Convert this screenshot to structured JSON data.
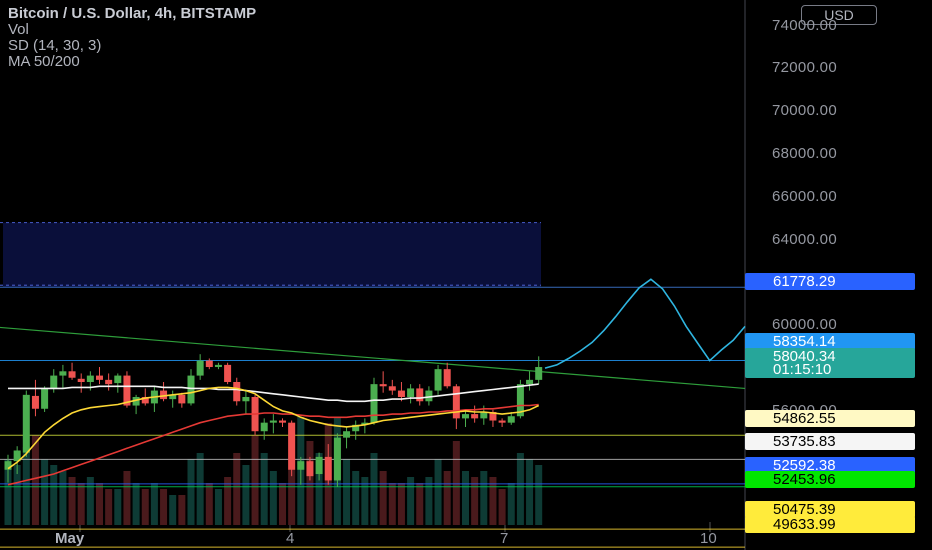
{
  "legend": {
    "title": "Bitcoin / U.S. Dollar, 4h, BITSTAMP",
    "lines": [
      "Vol",
      "SD (14, 30, 3)",
      "MA 50/200"
    ]
  },
  "currency_button": "USD",
  "axis": {
    "y_labels": [
      "74000.00",
      "72000.00",
      "70000.00",
      "68000.00",
      "66000.00",
      "64000.00",
      "60000.00",
      "56000.00"
    ],
    "x_labels": [
      "May",
      "4",
      "7",
      "10"
    ]
  },
  "price_tags": [
    {
      "label": "61778.29",
      "bg": "#2962ff",
      "fg": "#ffffff"
    },
    {
      "label": "58354.14",
      "bg": "#2196f3",
      "fg": "#ffffff"
    },
    {
      "label": "58040.34",
      "bg": "#26a69a",
      "fg": "#ffffff"
    },
    {
      "label": "01:15:10",
      "bg": "#26a69a",
      "fg": "#ffffff"
    },
    {
      "label": "54862.55",
      "bg": "#fff9c4",
      "fg": "#000000"
    },
    {
      "label": "53735.83",
      "bg": "#f5f5f5",
      "fg": "#000000"
    },
    {
      "label": "52592.38",
      "bg": "#2962ff",
      "fg": "#ffffff"
    },
    {
      "label": "52453.96",
      "bg": "#00e600",
      "fg": "#000000"
    },
    {
      "label": "50475.39",
      "bg": "#ffeb3b",
      "fg": "#000000"
    },
    {
      "label": "49633.99",
      "bg": "#ffeb3b",
      "fg": "#000000"
    }
  ],
  "colors": {
    "up": "#26a69a",
    "down": "#ef5350",
    "up_bright": "#4caf50"
  },
  "chart_data": {
    "type": "candlestick",
    "symbol": "BTCUSD",
    "interval": "4h",
    "ylim": [
      49500,
      75200
    ],
    "candles": [
      [
        53250,
        53950,
        52650,
        53650
      ],
      [
        53650,
        54350,
        53050,
        54150
      ],
      [
        54050,
        56950,
        53850,
        56750
      ],
      [
        56700,
        57450,
        55750,
        56100
      ],
      [
        56100,
        57150,
        55950,
        57050
      ],
      [
        57050,
        57950,
        56850,
        57650
      ],
      [
        57650,
        58150,
        57050,
        57850
      ],
      [
        57850,
        58250,
        57450,
        57550
      ],
      [
        57500,
        57750,
        56850,
        57350
      ],
      [
        57350,
        57850,
        56950,
        57650
      ],
      [
        57650,
        58050,
        57250,
        57450
      ],
      [
        57450,
        57750,
        56950,
        57250
      ],
      [
        57300,
        57750,
        56850,
        57650
      ],
      [
        57650,
        57850,
        56150,
        56250
      ],
      [
        56250,
        56750,
        55850,
        56650
      ],
      [
        56650,
        57050,
        56250,
        56350
      ],
      [
        56350,
        57150,
        55950,
        56950
      ],
      [
        56950,
        57350,
        56450,
        56550
      ],
      [
        56550,
        56950,
        56150,
        56750
      ],
      [
        56750,
        56850,
        56150,
        56350
      ],
      [
        56350,
        57950,
        56250,
        57650
      ],
      [
        57650,
        58650,
        57450,
        58350
      ],
      [
        58350,
        58450,
        57950,
        58050
      ],
      [
        58050,
        58250,
        57950,
        58150
      ],
      [
        58150,
        58250,
        57250,
        57350
      ],
      [
        57350,
        57550,
        56250,
        56450
      ],
      [
        56450,
        56950,
        55850,
        56650
      ],
      [
        56650,
        56750,
        54850,
        55050
      ],
      [
        55050,
        55650,
        54650,
        55450
      ],
      [
        55450,
        55850,
        54950,
        55550
      ],
      [
        55550,
        55650,
        55250,
        55450
      ],
      [
        55450,
        55550,
        52950,
        53250
      ],
      [
        53250,
        53850,
        52550,
        53650
      ],
      [
        53650,
        53850,
        52750,
        52950
      ],
      [
        53050,
        54050,
        52750,
        53850
      ],
      [
        53850,
        54450,
        52550,
        52750
      ],
      [
        52750,
        54950,
        52450,
        54750
      ],
      [
        54750,
        55250,
        54250,
        55050
      ],
      [
        55050,
        55550,
        54650,
        55350
      ],
      [
        55350,
        55650,
        54950,
        55450
      ],
      [
        55450,
        57550,
        55350,
        57250
      ],
      [
        57250,
        57850,
        56850,
        57150
      ],
      [
        57150,
        57450,
        56750,
        56950
      ],
      [
        56950,
        57350,
        56450,
        56650
      ],
      [
        56650,
        57250,
        56350,
        57050
      ],
      [
        57050,
        57250,
        56250,
        56450
      ],
      [
        56450,
        57150,
        56250,
        56950
      ],
      [
        56950,
        58150,
        56750,
        57950
      ],
      [
        57950,
        58250,
        57050,
        57150
      ],
      [
        57150,
        57250,
        55150,
        55650
      ],
      [
        55650,
        56050,
        55250,
        55850
      ],
      [
        55850,
        56250,
        55450,
        55650
      ],
      [
        55650,
        56250,
        55350,
        55950
      ],
      [
        55950,
        56050,
        55250,
        55550
      ],
      [
        55550,
        55650,
        55250,
        55450
      ],
      [
        55450,
        55950,
        55350,
        55750
      ],
      [
        55750,
        57450,
        55650,
        57250
      ],
      [
        57250,
        57850,
        56950,
        57450
      ],
      [
        57450,
        58550,
        57250,
        58050
      ]
    ],
    "ma_yellow": [
      53300,
      53600,
      54000,
      54500,
      55000,
      55350,
      55650,
      55900,
      56050,
      56150,
      56200,
      56250,
      56300,
      56400,
      56500,
      56600,
      56650,
      56700,
      56750,
      56800,
      56850,
      56950,
      57050,
      57100,
      57100,
      57050,
      56950,
      56800,
      56500,
      56200,
      56000,
      55900,
      55700,
      55550,
      55450,
      55350,
      55300,
      55250,
      55300,
      55350,
      55450,
      55550,
      55600,
      55650,
      55700,
      55750,
      55800,
      55850,
      55900,
      55950,
      56000,
      55950,
      55950,
      55900,
      55850,
      55900,
      55950,
      56050,
      56250
    ],
    "ma_red": [
      52550,
      52650,
      52750,
      52850,
      52950,
      53050,
      53200,
      53350,
      53500,
      53650,
      53800,
      53950,
      54100,
      54250,
      54400,
      54550,
      54700,
      54850,
      55000,
      55150,
      55300,
      55450,
      55550,
      55650,
      55750,
      55800,
      55850,
      55850,
      55900,
      55900,
      55850,
      55850,
      55800,
      55750,
      55750,
      55700,
      55700,
      55700,
      55750,
      55750,
      55800,
      55800,
      55850,
      55850,
      55900,
      55900,
      55950,
      55950,
      56000,
      56000,
      56050,
      56050,
      56100,
      56100,
      56150,
      56200,
      56250,
      56250,
      56300
    ],
    "ma_white": [
      57050,
      57050,
      57050,
      57050,
      57050,
      57050,
      57050,
      57100,
      57100,
      57100,
      57150,
      57150,
      57150,
      57150,
      57150,
      57150,
      57150,
      57100,
      57100,
      57100,
      57050,
      57050,
      57050,
      57000,
      57000,
      57000,
      56950,
      56900,
      56850,
      56800,
      56750,
      56700,
      56650,
      56600,
      56550,
      56500,
      56500,
      56450,
      56450,
      56450,
      56500,
      56500,
      56550,
      56550,
      56600,
      56600,
      56650,
      56700,
      56750,
      56800,
      56850,
      56900,
      56950,
      57000,
      57050,
      57100,
      57150,
      57200,
      57250
    ],
    "volumes": [
      0.55,
      0.5,
      0.65,
      0.75,
      0.55,
      0.5,
      0.45,
      0.4,
      0.35,
      0.4,
      0.35,
      0.3,
      0.3,
      0.45,
      0.35,
      0.3,
      0.35,
      0.3,
      0.25,
      0.25,
      0.55,
      0.6,
      0.35,
      0.3,
      0.4,
      0.6,
      0.5,
      0.75,
      0.6,
      0.45,
      0.35,
      0.85,
      0.9,
      0.7,
      0.6,
      0.85,
      0.9,
      0.55,
      0.45,
      0.4,
      0.6,
      0.45,
      0.35,
      0.35,
      0.4,
      0.35,
      0.4,
      0.55,
      0.45,
      0.7,
      0.45,
      0.4,
      0.45,
      0.4,
      0.3,
      0.35,
      0.6,
      0.55,
      0.5
    ],
    "zone": {
      "from": 61778.29,
      "to": 64800
    },
    "trendline": {
      "start": 59900,
      "end": 57050
    },
    "horizontal_lines": [
      61778.29,
      58354.14,
      54862.55,
      53735.83,
      52592.38,
      52453.96,
      50475.39,
      49633.99
    ],
    "projection": [
      58000,
      58150,
      58450,
      58800,
      59200,
      59750,
      60400,
      61100,
      61750,
      62150,
      61700,
      60900,
      59950,
      59150,
      58350,
      58850,
      59300,
      59950
    ]
  }
}
